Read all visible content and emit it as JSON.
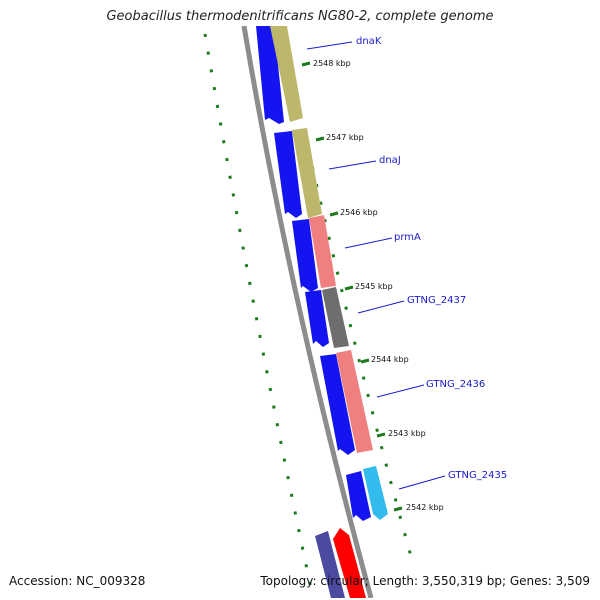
{
  "title": "Geobacillus thermodenitrificans NG80-2, complete genome",
  "footer": {
    "accession": "Accession: NC_009328",
    "topology": "Topology: circular; Length: 3,550,319 bp; Genes: 3,509"
  },
  "colors": {
    "backbone": "#8c8c8c",
    "cds": "#1414f0",
    "cog_olive": "#bdb76b",
    "cog_salmon": "#f08080",
    "cog_gray": "#6e6e6e",
    "cog_cyan": "#33bbee",
    "cog_purple": "#4a4aa0",
    "cog_red": "#ff0000",
    "ticks": "#1e7a1e",
    "label_line": "#1a1acc"
  },
  "kbp_ticks": [
    "2548 kbp",
    "2547 kbp",
    "2546 kbp",
    "2545 kbp",
    "2544 kbp",
    "2543 kbp",
    "2542 kbp"
  ],
  "gene_labels": [
    "dnaK",
    "dnaJ",
    "prmA",
    "GTNG_2437",
    "GTNG_2436",
    "GTNG_2435"
  ]
}
